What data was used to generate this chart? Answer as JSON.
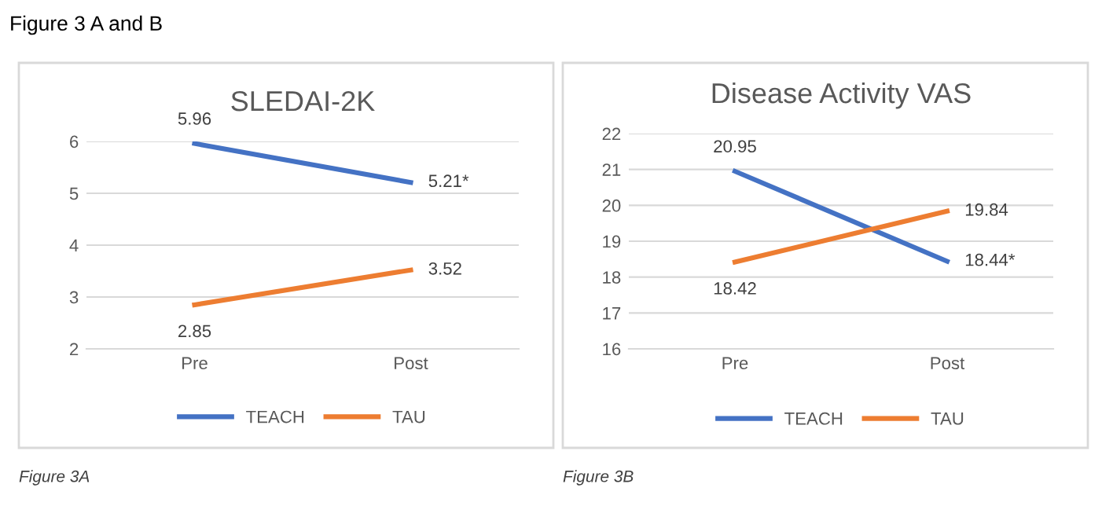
{
  "chart_data": [
    {
      "type": "line",
      "title": "SLEDAI-2K",
      "categories": [
        "Pre",
        "Post"
      ],
      "ylim": [
        2,
        6
      ],
      "yticks": [
        2,
        3,
        4,
        5,
        6
      ],
      "grid": "y",
      "legend": "bottom",
      "marker": "none",
      "line_style": "solid",
      "series": [
        {
          "name": "TEACH",
          "color": "#4472c4",
          "values": [
            5.96,
            5.21
          ],
          "value_labels": [
            "5.96",
            "5.21*"
          ]
        },
        {
          "name": "TAU",
          "color": "#ed7d31",
          "values": [
            2.85,
            3.52
          ],
          "value_labels": [
            "2.85",
            "3.52"
          ]
        }
      ],
      "annotations": [
        "Figure 3 A and B",
        "Figure 3A"
      ]
    },
    {
      "type": "line",
      "title": "Disease Activity VAS",
      "categories": [
        "Pre",
        "Post"
      ],
      "ylim": [
        16,
        22
      ],
      "yticks": [
        16,
        17,
        18,
        19,
        20,
        21,
        22
      ],
      "grid": "y",
      "legend": "bottom",
      "marker": "none",
      "line_style": "solid",
      "series": [
        {
          "name": "TEACH",
          "color": "#4472c4",
          "values": [
            20.95,
            18.44
          ],
          "value_labels": [
            "20.95",
            "18.44*"
          ]
        },
        {
          "name": "TAU",
          "color": "#ed7d31",
          "values": [
            18.42,
            19.84
          ],
          "value_labels": [
            "18.42",
            "19.84"
          ]
        }
      ],
      "annotations": [
        "Figure 3B"
      ]
    }
  ]
}
